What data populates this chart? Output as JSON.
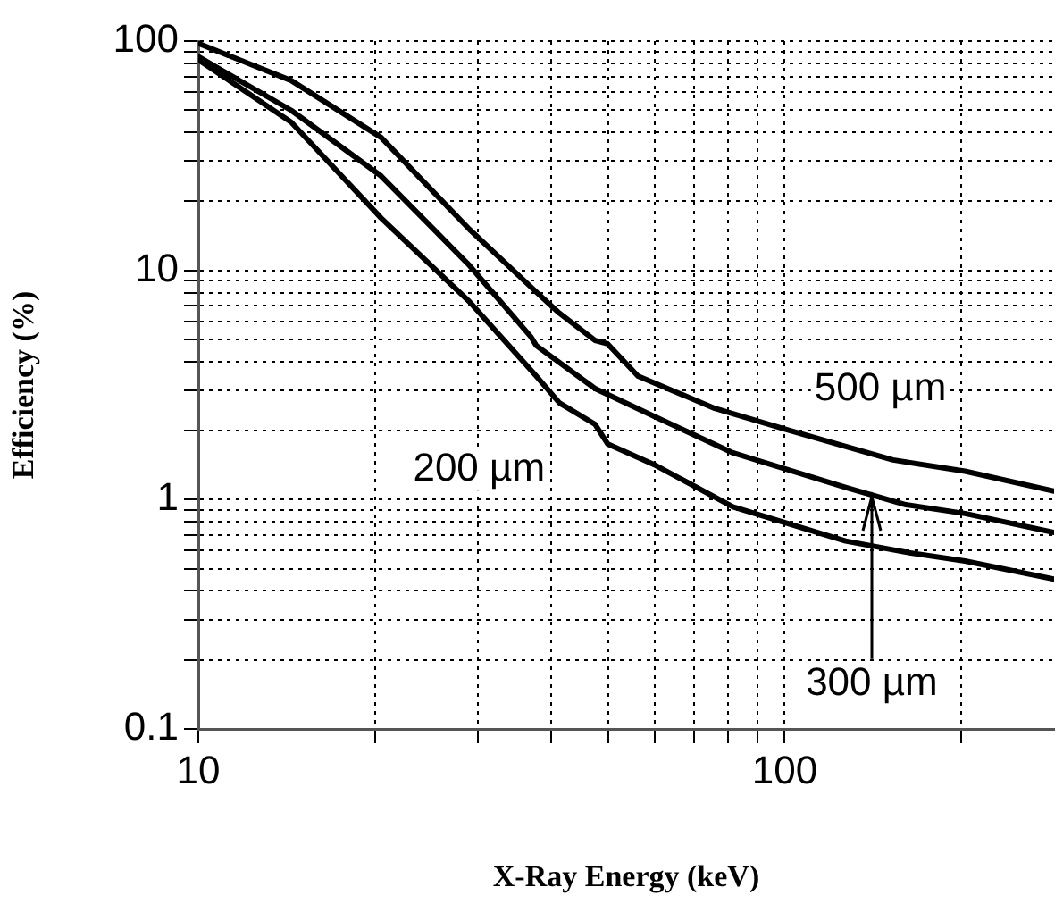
{
  "chart_data": {
    "type": "line",
    "xlabel": "X-Ray Energy (keV)",
    "ylabel": "Efficiency (%)",
    "log": "xy",
    "grid": true,
    "legend": false,
    "marker": "none",
    "line_style": "solid",
    "xlim": [
      10,
      288
    ],
    "ylim": [
      0.1,
      100
    ],
    "xticks": [
      10,
      {
        "value": 20,
        "label": null
      },
      {
        "value": 30,
        "label": null
      },
      {
        "value": 40,
        "label": null
      },
      {
        "value": 50,
        "label": null
      },
      {
        "value": 60,
        "label": null
      },
      {
        "value": 70,
        "label": null
      },
      {
        "value": 80,
        "label": null
      },
      {
        "value": 90,
        "label": null
      },
      100,
      {
        "value": 200,
        "label": null
      }
    ],
    "yticks": [
      0.1,
      {
        "value": 0.2,
        "label": null
      },
      {
        "value": 0.3,
        "label": null
      },
      {
        "value": 0.4,
        "label": null
      },
      {
        "value": 0.5,
        "label": null
      },
      {
        "value": 0.6,
        "label": null
      },
      {
        "value": 0.7,
        "label": null
      },
      {
        "value": 0.8,
        "label": null
      },
      {
        "value": 0.9,
        "label": null
      },
      1,
      {
        "value": 2,
        "label": null
      },
      {
        "value": 3,
        "label": null
      },
      {
        "value": 4,
        "label": null
      },
      {
        "value": 5,
        "label": null
      },
      {
        "value": 6,
        "label": null
      },
      {
        "value": 7,
        "label": null
      },
      {
        "value": 8,
        "label": null
      },
      {
        "value": 9,
        "label": null
      },
      10,
      {
        "value": 20,
        "label": null
      },
      {
        "value": 30,
        "label": null
      },
      {
        "value": 40,
        "label": null
      },
      {
        "value": 50,
        "label": null
      },
      {
        "value": 60,
        "label": null
      },
      {
        "value": 70,
        "label": null
      },
      {
        "value": 80,
        "label": null
      },
      {
        "value": 90,
        "label": null
      },
      100
    ],
    "series": [
      {
        "name": "500 µm",
        "color": "#000000",
        "x": [
          10,
          14.4,
          20.5,
          29,
          37.7,
          41.3,
          47.5,
          49.9,
          56.2,
          76,
          100.7,
          153,
          203,
          288
        ],
        "values": [
          97.7,
          67.3,
          38,
          15.1,
          8.05,
          6.5,
          4.95,
          4.78,
          3.46,
          2.5,
          2.02,
          1.49,
          1.33,
          1.09
        ]
      },
      {
        "name": "300 µm",
        "color": "#000000",
        "x": [
          10,
          14.4,
          20.5,
          29,
          36.9,
          37.7,
          47.5,
          60.3,
          81.6,
          127,
          161,
          203,
          288
        ],
        "values": [
          85.5,
          49.9,
          25.8,
          10.5,
          5.14,
          4.7,
          3.05,
          2.29,
          1.6,
          1.13,
          0.95,
          0.87,
          0.72
        ]
      },
      {
        "name": "200 µm",
        "color": "#000000",
        "x": [
          10,
          14.4,
          20.5,
          29,
          37.7,
          41.3,
          47.5,
          49.9,
          60.3,
          81.6,
          127,
          161,
          203,
          288
        ],
        "values": [
          83,
          44.3,
          16.9,
          7.3,
          3.46,
          2.64,
          2.13,
          1.75,
          1.41,
          0.93,
          0.66,
          0.59,
          0.54,
          0.45
        ]
      }
    ]
  }
}
